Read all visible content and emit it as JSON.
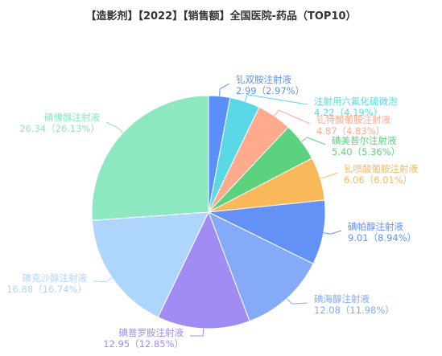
{
  "chart_data": {
    "type": "pie",
    "title": "【造影剂】【2022】【销售额】全国医院-药品（TOP10）",
    "slices": [
      {
        "name": "钆双胺注射液",
        "value": 2.99,
        "percent_label": "2.99（2.97%）",
        "color": "#5b8ff9"
      },
      {
        "name": "注射用六氟化硫微泡",
        "value": 4.22,
        "percent_label": "4.22（4.19%）",
        "color": "#5ad8e6"
      },
      {
        "name": "钆特酸葡胺注射液",
        "value": 4.87,
        "percent_label": "4.87（4.83%）",
        "color": "#ffaa8c"
      },
      {
        "name": "碘美普尔注射液",
        "value": 5.4,
        "percent_label": "5.40（5.36%）",
        "color": "#5cd17e"
      },
      {
        "name": "钆喷酸葡胺注射液",
        "value": 6.06,
        "percent_label": "6.06（6.01%）",
        "color": "#f9b95b"
      },
      {
        "name": "碘帕醇注射液",
        "value": 9.01,
        "percent_label": "9.01（8.94%）",
        "color": "#6391f5"
      },
      {
        "name": "碘海醇注射液",
        "value": 12.08,
        "percent_label": "12.08（11.98%）",
        "color": "#85aaf7"
      },
      {
        "name": "碘普罗胺注射液",
        "value": 12.95,
        "percent_label": "12.95（12.85%）",
        "color": "#a08cf2"
      },
      {
        "name": "碘克沙醇注射液",
        "value": 16.88,
        "percent_label": "16.88（16.74%）",
        "color": "#aed6fc"
      },
      {
        "name": "碘佛醇注射液",
        "value": 26.34,
        "percent_label": "26.34（26.13%）",
        "color": "#8de8c1"
      }
    ]
  }
}
